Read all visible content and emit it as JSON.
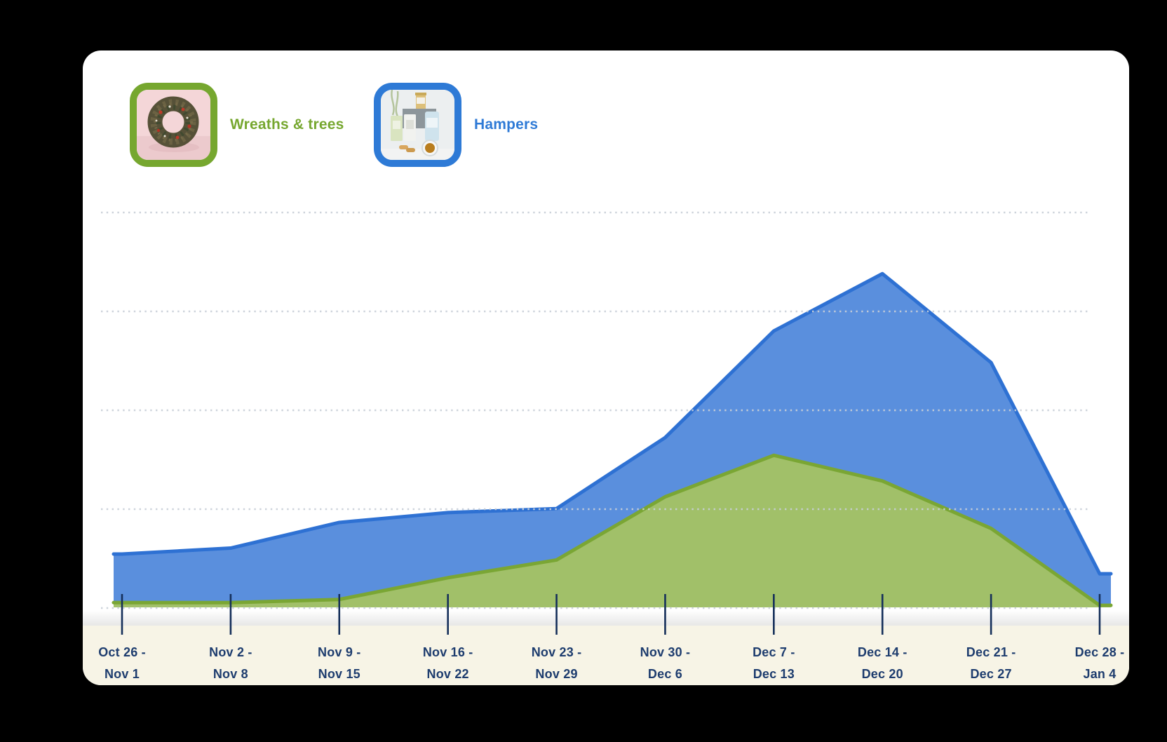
{
  "legend": {
    "items": [
      {
        "label": "Wreaths & trees",
        "color": "#76a72f",
        "image": "wreath-thumbnail"
      },
      {
        "label": "Hampers",
        "color": "#2e7ad6",
        "image": "hamper-thumbnail"
      }
    ]
  },
  "chart_data": {
    "type": "area",
    "title": "",
    "xlabel": "",
    "ylabel": "",
    "x_categories": [
      "Oct 26 - Nov 1",
      "Nov 2 - Nov 8",
      "Nov 9 - Nov 15",
      "Nov 16 - Nov 22",
      "Nov 23 - Nov 29",
      "Nov 30 - Dec 6",
      "Dec 7 - Dec 13",
      "Dec 14 - Dec 20",
      "Dec 21 - Dec 27",
      "Dec 28 - Jan 4"
    ],
    "x_tick_labels": [
      [
        "Oct 26 -",
        "Nov 1"
      ],
      [
        "Nov 2 -",
        "Nov 8"
      ],
      [
        "Nov 9 -",
        "Nov 15"
      ],
      [
        "Nov 16 -",
        "Nov 22"
      ],
      [
        "Nov 23 -",
        "Nov 29"
      ],
      [
        "Nov 30 -",
        "Dec 6"
      ],
      [
        "Dec 7 -",
        "Dec 13"
      ],
      [
        "Dec 14 -",
        "Dec 20"
      ],
      [
        "Dec 21 -",
        "Dec 27"
      ],
      [
        "Dec 28 -",
        "Jan 4"
      ]
    ],
    "series": [
      {
        "name": "Hampers",
        "fill": "#5a8fdd",
        "stroke": "#2e71d3",
        "values": [
          13.5,
          15,
          21.5,
          24,
          25,
          43,
          70,
          84.5,
          62,
          8.5
        ]
      },
      {
        "name": "Wreaths & trees",
        "fill": "#a1c069",
        "stroke": "#7aa634",
        "values": [
          1.2,
          1.2,
          2,
          7.5,
          12,
          28,
          38.5,
          32,
          20,
          0.5
        ]
      }
    ],
    "y_axis": {
      "tick_labels_visible": false,
      "gridline_count": 5,
      "ylim": [
        0,
        100
      ]
    },
    "grid": "dotted-horizontal",
    "legend_position": "top-left"
  },
  "axis_style": {
    "tick_color": "#152f5a",
    "label_color": "#1d3c6e",
    "band_color": "#f7f4e6",
    "gridline_color": "#c9d0d8"
  }
}
